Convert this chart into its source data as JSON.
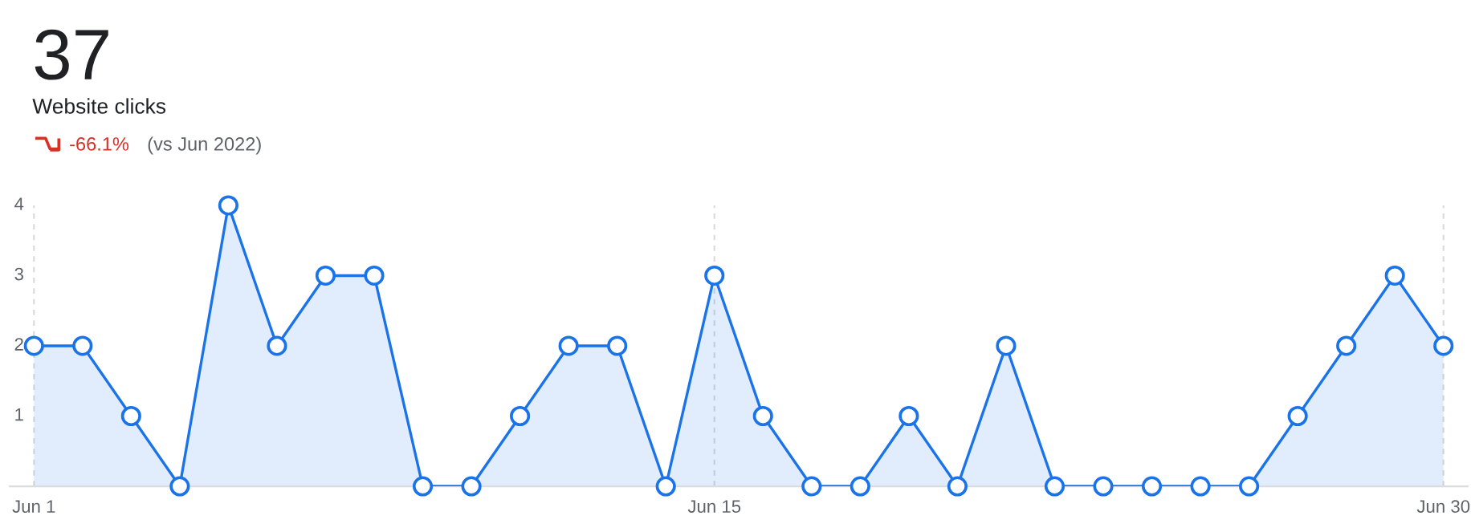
{
  "chart_data": {
    "type": "area",
    "title": "37",
    "subtitle": "Website clicks",
    "annotations": [
      "-66.1%",
      "(vs Jun 2022)"
    ],
    "categories": [
      "Jun 1",
      null,
      null,
      null,
      null,
      null,
      null,
      null,
      null,
      null,
      null,
      null,
      null,
      null,
      "Jun 15",
      null,
      null,
      null,
      null,
      null,
      null,
      null,
      null,
      null,
      null,
      null,
      null,
      null,
      null,
      "Jun 30"
    ],
    "series": [
      {
        "color": "#1a73e8",
        "values": [
          2,
          2,
          1,
          0,
          4,
          2,
          3,
          3,
          0,
          0,
          1,
          2,
          2,
          0,
          3,
          1,
          0,
          0,
          1,
          0,
          2,
          0,
          0,
          0,
          0,
          0,
          1,
          2,
          3,
          2
        ]
      }
    ],
    "ylim": [
      0,
      4
    ],
    "yticks": [
      1,
      2,
      3,
      4
    ],
    "grid": "x",
    "marker": "circle",
    "line_style": "solid",
    "legend": false
  }
}
